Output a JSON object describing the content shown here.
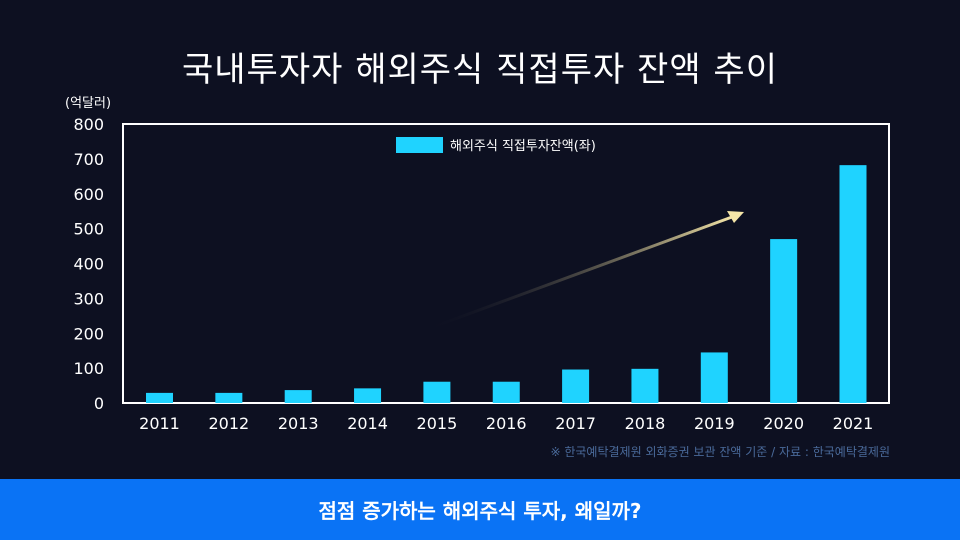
{
  "title": "국내투자자 해외주식 직접투자 잔액 추이",
  "footnote": "※ 한국예탁결제원 외화증권 보관 잔액 기준 / 자료 : 한국예탁결제원",
  "banner": "점점 증가하는 해외주식 투자, 왜일까?",
  "colors": {
    "bar": "#1fd3ff",
    "background": "#0d1021",
    "banner": "#0a73f5",
    "arrow": "#f5e6a8"
  },
  "chart_data": {
    "type": "bar",
    "title": "국내투자자 해외주식 직접투자 잔액 추이",
    "ylabel": "(억달러)",
    "xlabel": "",
    "ylim": [
      0,
      800
    ],
    "yticks": [
      0,
      100,
      200,
      300,
      400,
      500,
      600,
      700,
      800
    ],
    "categories": [
      "2011",
      "2012",
      "2013",
      "2014",
      "2015",
      "2016",
      "2017",
      "2018",
      "2019",
      "2020",
      "2021"
    ],
    "series": [
      {
        "name": "해외주식 직접투자잔액(좌)",
        "values": [
          29,
          29,
          37,
          42,
          61,
          61,
          96,
          98,
          145,
          470,
          682
        ]
      }
    ],
    "legend": "top-center",
    "annotation": "upward-trend-arrow"
  }
}
